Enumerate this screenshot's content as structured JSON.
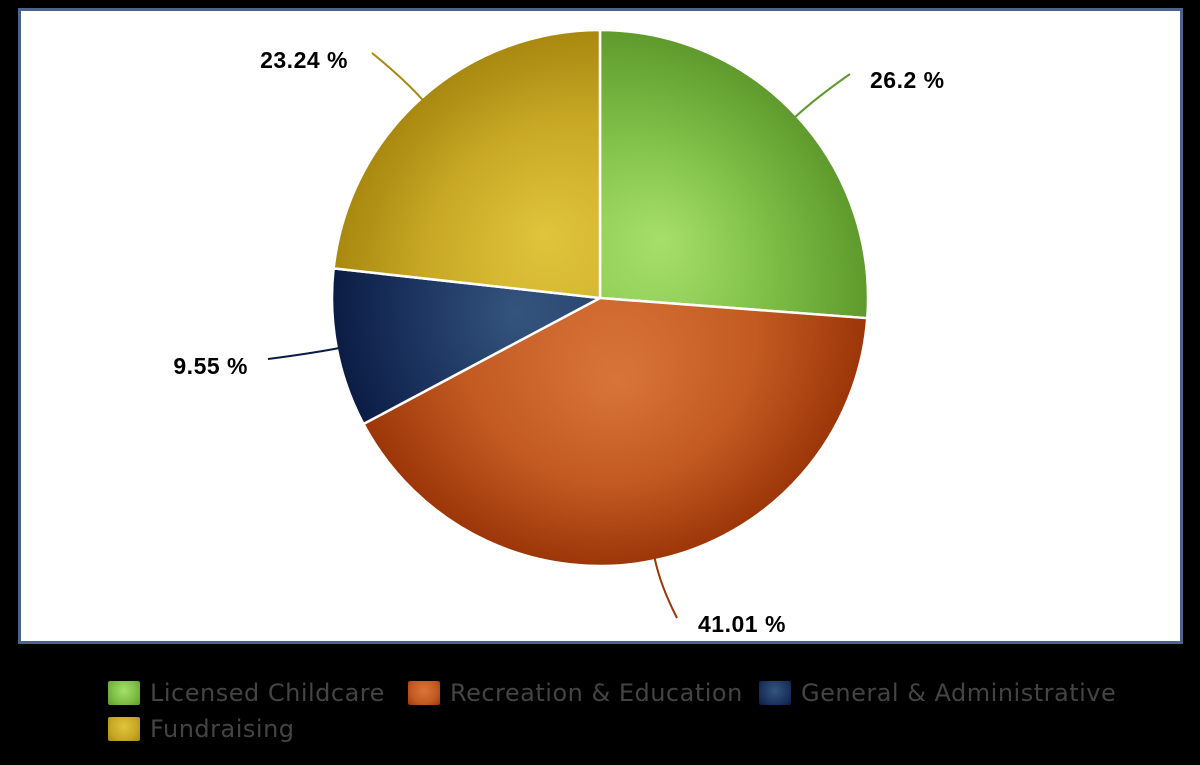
{
  "chart_data": {
    "type": "pie",
    "series": [
      {
        "name": "Licensed Childcare",
        "value": 26.2,
        "label": "26.2 %",
        "color_light": "#a6e06a",
        "color": "#7cbc45",
        "color_dark": "#5e9a2c"
      },
      {
        "name": "Recreation & Education",
        "value": 41.01,
        "label": "41.01 %",
        "color_light": "#d8743a",
        "color": "#c25a22",
        "color_dark": "#9c3608"
      },
      {
        "name": "General & Administrative",
        "value": 9.55,
        "label": "9.55 %",
        "color_light": "#34547e",
        "color": "#1c3560",
        "color_dark": "#0b1c44"
      },
      {
        "name": "Fundraising",
        "value": 23.24,
        "label": "23.24 %",
        "color_light": "#e0c43c",
        "color": "#c8a825",
        "color_dark": "#a8880f"
      }
    ],
    "start_angle_deg": 0,
    "direction": "clockwise",
    "legend_position": "bottom"
  },
  "colors": {
    "background": "#000000",
    "plot_area": "#ffffff",
    "frame": "#4a6390",
    "label_text": "#000000",
    "legend_text": "#444444"
  }
}
